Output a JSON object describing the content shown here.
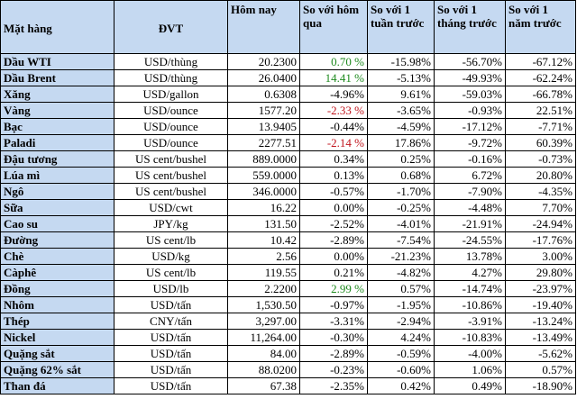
{
  "headers": [
    "Mặt hàng",
    "ĐVT",
    "Hôm nay",
    "So với hôm qua",
    "So với 1 tuần trước",
    "So với 1 tháng trước",
    "So với 1 năm trước"
  ],
  "rows": [
    {
      "name": "Dầu WTI",
      "unit": "USD/thùng",
      "today": "20.2300",
      "d1": "0.70 %",
      "w1": "-15.98%",
      "m1": "-56.70%",
      "y1": "-67.12%",
      "d1_color": "pos"
    },
    {
      "name": "Dầu Brent",
      "unit": "USD/thùng",
      "today": "26.0400",
      "d1": "14.41 %",
      "w1": "-5.13%",
      "m1": "-49.93%",
      "y1": "-62.24%",
      "d1_color": "pos"
    },
    {
      "name": "Xăng",
      "unit": "USD/gallon",
      "today": "0.6308",
      "d1": "-4.96%",
      "w1": "9.61%",
      "m1": "-59.03%",
      "y1": "-66.78%",
      "d1_color": ""
    },
    {
      "name": "Vàng",
      "unit": "USD/ounce",
      "today": "1577.20",
      "d1": "-2.33 %",
      "w1": "-3.65%",
      "m1": "-0.93%",
      "y1": "22.51%",
      "d1_color": "neg"
    },
    {
      "name": "Bạc",
      "unit": "USD/ounce",
      "today": "13.9405",
      "d1": "-0.44%",
      "w1": "-4.59%",
      "m1": "-17.12%",
      "y1": "-7.71%",
      "d1_color": ""
    },
    {
      "name": "Paladi",
      "unit": "USD/ounce",
      "today": "2277.51",
      "d1": "-2.14 %",
      "w1": "17.86%",
      "m1": "-9.72%",
      "y1": "60.39%",
      "d1_color": "neg"
    },
    {
      "name": "Đậu tương",
      "unit": "US cent/bushel",
      "today": "889.0000",
      "d1": "0.34%",
      "w1": "0.25%",
      "m1": "-0.16%",
      "y1": "-0.73%",
      "d1_color": ""
    },
    {
      "name": "Lúa mì",
      "unit": "US cent/bushel",
      "today": "559.0000",
      "d1": "0.13%",
      "w1": "0.68%",
      "m1": "6.72%",
      "y1": "20.80%",
      "d1_color": ""
    },
    {
      "name": "Ngô",
      "unit": "US cent/bushel",
      "today": "346.0000",
      "d1": "-0.57%",
      "w1": "-1.70%",
      "m1": "-7.90%",
      "y1": "-4.35%",
      "d1_color": ""
    },
    {
      "name": "Sữa",
      "unit": "USD/cwt",
      "today": "16.22",
      "d1": "0.00%",
      "w1": "-0.25%",
      "m1": "-4.48%",
      "y1": "7.70%",
      "d1_color": ""
    },
    {
      "name": "Cao su",
      "unit": "JPY/kg",
      "today": "131.50",
      "d1": "-2.52%",
      "w1": "-4.01%",
      "m1": "-21.91%",
      "y1": "-24.94%",
      "d1_color": ""
    },
    {
      "name": "Đường",
      "unit": "US cent/lb",
      "today": "10.42",
      "d1": "-2.89%",
      "w1": "-7.54%",
      "m1": "-24.55%",
      "y1": "-17.76%",
      "d1_color": ""
    },
    {
      "name": "Chè",
      "unit": "USD/kg",
      "today": "2.56",
      "d1": "0.00%",
      "w1": "-21.23%",
      "m1": "13.78%",
      "y1": "3.00%",
      "d1_color": ""
    },
    {
      "name": "Càphê",
      "unit": "US cent/lb",
      "today": "119.55",
      "d1": "0.21%",
      "w1": "-4.82%",
      "m1": "4.27%",
      "y1": "29.80%",
      "d1_color": ""
    },
    {
      "name": "Đồng",
      "unit": "USD/lb",
      "today": "2.2200",
      "d1": "2.99 %",
      "w1": "0.57%",
      "m1": "-14.74%",
      "y1": "-23.97%",
      "d1_color": "pos"
    },
    {
      "name": "Nhôm",
      "unit": "USD/tấn",
      "today": "1,530.50",
      "d1": "-0.97%",
      "w1": "-1.95%",
      "m1": "-10.86%",
      "y1": "-19.40%",
      "d1_color": ""
    },
    {
      "name": "Thép",
      "unit": "CNY/tấn",
      "today": "3,297.00",
      "d1": "-3.31%",
      "w1": "-2.94%",
      "m1": "-3.91%",
      "y1": "-13.24%",
      "d1_color": ""
    },
    {
      "name": "Nickel",
      "unit": "USD/tấn",
      "today": "11,264.00",
      "d1": "-0.30%",
      "w1": "4.24%",
      "m1": "-10.83%",
      "y1": "-13.49%",
      "d1_color": ""
    },
    {
      "name": "Quặng sắt",
      "unit": "USD/tấn",
      "today": "84.00",
      "d1": "-2.89%",
      "w1": "-0.59%",
      "m1": "-4.00%",
      "y1": "-5.62%",
      "d1_color": ""
    },
    {
      "name": "Quặng 62% sắt",
      "unit": "USD/tấn",
      "today": "88.0200",
      "d1": "-0.23%",
      "w1": "-0.60%",
      "m1": "1.06%",
      "y1": "0.57%",
      "d1_color": ""
    },
    {
      "name": "Than đá",
      "unit": "USD/tấn",
      "today": "67.38",
      "d1": "-2.35%",
      "w1": "0.42%",
      "m1": "0.49%",
      "y1": "-18.90%",
      "d1_color": ""
    }
  ],
  "colors": {
    "header_bg": "#c5d9f1",
    "positive": "#1e8a1e",
    "negative": "#c0141c",
    "border": "#000000"
  }
}
